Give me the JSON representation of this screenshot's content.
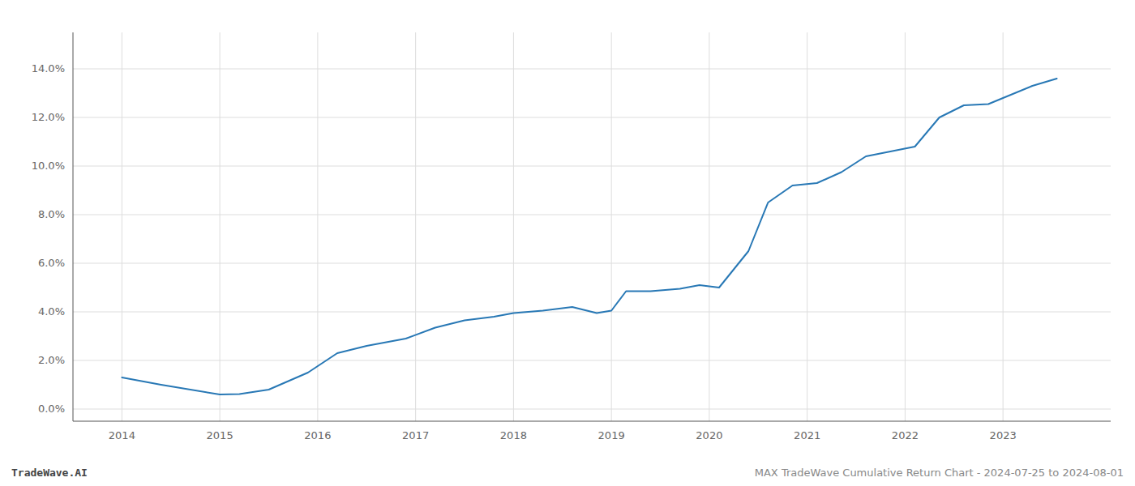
{
  "chart_data": {
    "type": "line",
    "title": "MAX TradeWave Cumulative Return Chart - 2024-07-25 to 2024-08-01",
    "annotations": [
      "TradeWave.AI"
    ],
    "x": [
      2014.0,
      2014.4,
      2015.0,
      2015.2,
      2015.5,
      2015.9,
      2016.2,
      2016.5,
      2016.9,
      2017.2,
      2017.5,
      2017.8,
      2018.0,
      2018.3,
      2018.6,
      2018.85,
      2019.0,
      2019.15,
      2019.4,
      2019.7,
      2019.9,
      2020.1,
      2020.4,
      2020.6,
      2020.85,
      2021.1,
      2021.35,
      2021.6,
      2021.85,
      2022.1,
      2022.35,
      2022.6,
      2022.85,
      2023.0,
      2023.3,
      2023.55
    ],
    "values": [
      1.3,
      1.0,
      0.6,
      0.62,
      0.8,
      1.5,
      2.3,
      2.6,
      2.9,
      3.35,
      3.65,
      3.8,
      3.95,
      4.05,
      4.2,
      3.95,
      4.05,
      4.85,
      4.85,
      4.95,
      5.1,
      5.0,
      6.5,
      8.5,
      9.2,
      9.3,
      9.75,
      10.4,
      10.6,
      10.8,
      12.0,
      12.5,
      12.55,
      12.8,
      13.3,
      13.6
    ],
    "color": "#2878b5",
    "xlim": [
      2013.5,
      2024.1
    ],
    "ylim": [
      -0.5,
      15.5
    ],
    "xticks": [
      2014,
      2015,
      2016,
      2017,
      2018,
      2019,
      2020,
      2021,
      2022,
      2023
    ],
    "yticks": [
      {
        "value": 0.0,
        "label": "0.0%"
      },
      {
        "value": 2.0,
        "label": "2.0%"
      },
      {
        "value": 4.0,
        "label": "4.0%"
      },
      {
        "value": 6.0,
        "label": "6.0%"
      },
      {
        "value": 8.0,
        "label": "8.0%"
      },
      {
        "value": 10.0,
        "label": "10.0%"
      },
      {
        "value": 12.0,
        "label": "12.0%"
      },
      {
        "value": 14.0,
        "label": "14.0%"
      }
    ],
    "grid": true
  }
}
